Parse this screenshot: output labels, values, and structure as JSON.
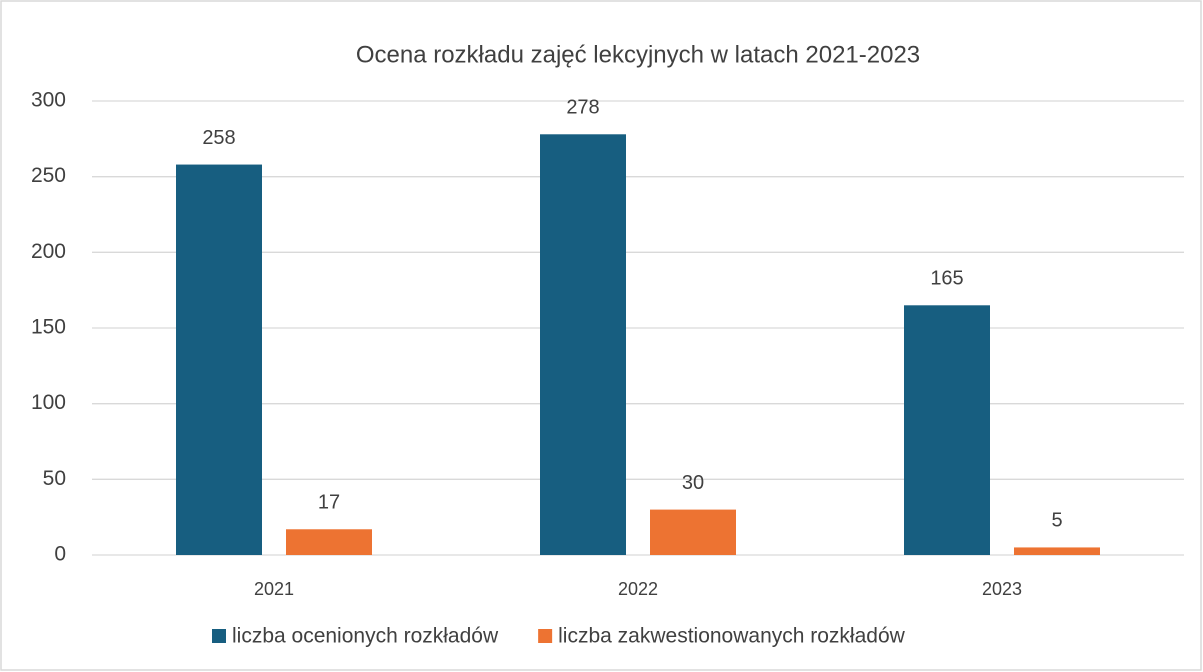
{
  "chart_data": {
    "type": "bar",
    "title": "Ocena rozkładu zajęć lekcyjnych w latach 2021-2023",
    "categories": [
      "2021",
      "2022",
      "2023"
    ],
    "series": [
      {
        "name": "liczba ocenionych rozkładów",
        "color": "#175e80",
        "values": [
          258,
          278,
          165
        ]
      },
      {
        "name": "liczba zakwestionowanych rozkładów",
        "color": "#ed7332",
        "values": [
          17,
          30,
          5
        ]
      }
    ],
    "ylim": [
      0,
      300
    ],
    "yticks": [
      0,
      50,
      100,
      150,
      200,
      250,
      300
    ],
    "grid": true,
    "legend": "bottom"
  }
}
